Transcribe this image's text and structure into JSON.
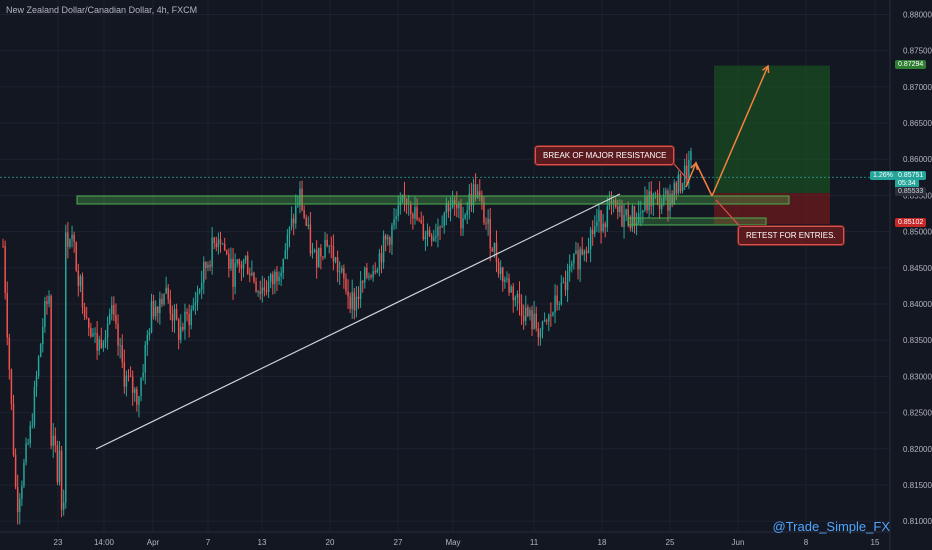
{
  "title": "New Zealand Dollar/Canadian Dollar, 4h, FXCM",
  "watermark": "@Trade_Simple_FX",
  "colors": {
    "background": "#131722",
    "grid": "#1e2230",
    "up": "#26a69a",
    "down": "#ef5350",
    "resistance_zone": "#4caf50",
    "trendline": "#d1d4dc",
    "arrow": "#f5813f",
    "target_zone": "#1b5e20",
    "stop_zone": "#8b1a1a"
  },
  "chart_data": {
    "type": "candlestick",
    "y_axis": {
      "ticks": [
        "0.88000",
        "0.87500",
        "0.87000",
        "0.86500",
        "0.86000",
        "0.85500",
        "0.85000",
        "0.84500",
        "0.84000",
        "0.83500",
        "0.83000",
        "0.82500",
        "0.82000",
        "0.81500",
        "0.81000"
      ],
      "range": [
        0.8085,
        0.882
      ]
    },
    "x_axis": {
      "ticks": [
        "23",
        "14:00",
        "Apr",
        "7",
        "13",
        "20",
        "27",
        "May",
        "11",
        "18",
        "25",
        "Jun",
        "8",
        "15"
      ]
    },
    "price_labels": [
      {
        "value": "0.87294",
        "bg": "#2e7d32",
        "color": "#ffffff",
        "y": 0.87294
      },
      {
        "value": "0.85751",
        "prefix": "1.26%",
        "bg": "#26a69a",
        "color": "#ffffff",
        "y": 0.85751
      },
      {
        "value": "05:34",
        "bg": "#26a69a",
        "color": "#ffffff",
        "y": 0.8565
      },
      {
        "value": "0.85533",
        "bg": "#2a2e39",
        "color": "#d1d4dc",
        "y": 0.85533
      },
      {
        "value": "0.85102",
        "bg": "#c62828",
        "color": "#ffffff",
        "y": 0.85102
      }
    ],
    "annotations": [
      {
        "text": "BREAK OF MAJOR RESISTANCE"
      },
      {
        "text": "RETEST FOR ENTRIES."
      }
    ],
    "price_path": [
      [
        0.848,
        0.848
      ],
      [
        0.812,
        0.852
      ],
      [
        0.822,
        0.844
      ],
      [
        0.838,
        0.842
      ],
      [
        0.846,
        0.85
      ],
      [
        0.85,
        0.856
      ],
      [
        0.84,
        0.846
      ],
      [
        0.834,
        0.836
      ],
      [
        0.839,
        0.84
      ],
      [
        0.83,
        0.832
      ],
      [
        0.827,
        0.829
      ],
      [
        0.839,
        0.84
      ],
      [
        0.842,
        0.842
      ],
      [
        0.836,
        0.837
      ],
      [
        0.839,
        0.84
      ],
      [
        0.845,
        0.846
      ],
      [
        0.85,
        0.851
      ],
      [
        0.844,
        0.845
      ],
      [
        0.846,
        0.848
      ],
      [
        0.842,
        0.843
      ],
      [
        0.843,
        0.845
      ],
      [
        0.848,
        0.85
      ],
      [
        0.855,
        0.856
      ],
      [
        0.846,
        0.847
      ],
      [
        0.849,
        0.85
      ],
      [
        0.844,
        0.845
      ],
      [
        0.84,
        0.841
      ],
      [
        0.844,
        0.845
      ],
      [
        0.847,
        0.849
      ],
      [
        0.851,
        0.852
      ],
      [
        0.855,
        0.856
      ],
      [
        0.85,
        0.851
      ],
      [
        0.85,
        0.852
      ],
      [
        0.854,
        0.855
      ],
      [
        0.852,
        0.853
      ],
      [
        0.856,
        0.857
      ],
      [
        0.85,
        0.851
      ],
      [
        0.844,
        0.845
      ],
      [
        0.841,
        0.842
      ],
      [
        0.838,
        0.839
      ],
      [
        0.836,
        0.837
      ],
      [
        0.84,
        0.841
      ],
      [
        0.844,
        0.845
      ],
      [
        0.848,
        0.849
      ],
      [
        0.851,
        0.852
      ],
      [
        0.853,
        0.854
      ],
      [
        0.852,
        0.853
      ],
      [
        0.852,
        0.853
      ],
      [
        0.8545,
        0.8555
      ],
      [
        0.854,
        0.855
      ],
      [
        0.856,
        0.8575
      ],
      [
        0.8595,
        0.8605
      ]
    ]
  }
}
